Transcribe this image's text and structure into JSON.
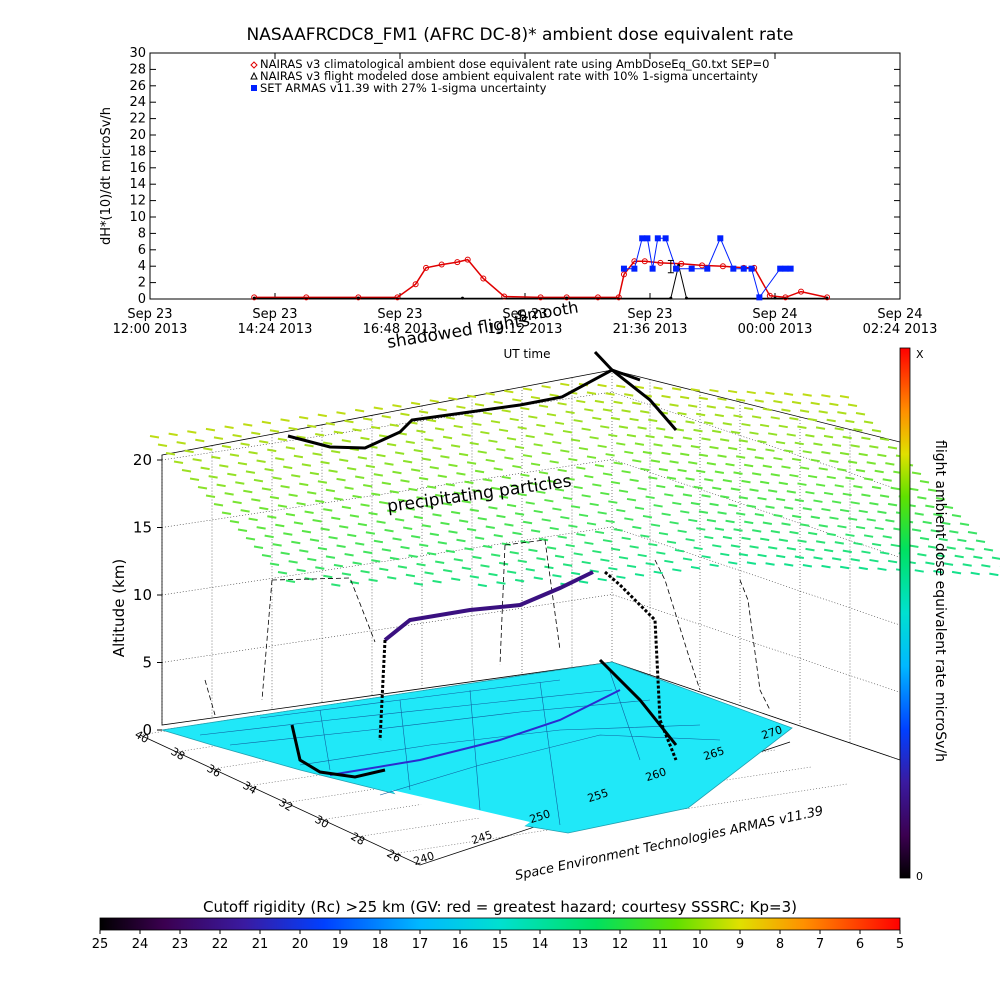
{
  "top_chart": {
    "title": "NASAAFRCDC8_FM1 (AFRC DC-8)* ambient dose equivalent rate",
    "ylabel": "dH*(10)/dt microSv/h",
    "xlabel": "UT time",
    "legend": [
      {
        "label": "NAIRAS v3 climatological ambient dose equivalent rate using AmbDoseEq_G0.txt SEP=0",
        "marker": "diamond",
        "color": "#e00000"
      },
      {
        "label": "NAIRAS v3 flight modeled dose ambient equivalent rate with 10% 1-sigma uncertainty",
        "marker": "triangle",
        "color": "#000000"
      },
      {
        "label": "SET ARMAS v11.39 with 27% 1-sigma uncertainty",
        "marker": "square",
        "color": "#0020ff"
      }
    ],
    "annotation_bottom": "shadowed  flights",
    "annotation_top": "Smooth"
  },
  "chart_data": [
    {
      "type": "line",
      "title": "NASAAFRCDC8_FM1 (AFRC DC-8)* ambient dose equivalent rate",
      "xlabel": "UT time",
      "ylabel": "dH*(10)/dt microSv/h",
      "ylim": [
        0,
        30
      ],
      "yticks": [
        0,
        2,
        4,
        6,
        8,
        10,
        12,
        14,
        16,
        18,
        20,
        22,
        24,
        26,
        28,
        30
      ],
      "xlim_hours": [
        0,
        14.4
      ],
      "xticks": [
        {
          "line1": "Sep 23",
          "line2": "12:00 2013"
        },
        {
          "line1": "Sep 23",
          "line2": "14:24 2013"
        },
        {
          "line1": "Sep 23",
          "line2": "16:48 2013"
        },
        {
          "line1": "Sep 23",
          "line2": "19:12 2013"
        },
        {
          "line1": "Sep 23",
          "line2": "21:36 2013"
        },
        {
          "line1": "Sep 24",
          "line2": "00:00 2013"
        },
        {
          "line1": "Sep 24",
          "line2": "02:24 2013"
        }
      ],
      "series": [
        {
          "name": "NAIRAS v3 climatological ambient dose equivalent rate using AmbDoseEq_G0.txt SEP=0",
          "color": "#e00000",
          "x_hours": [
            2.0,
            3.0,
            4.0,
            4.75,
            5.1,
            5.3,
            5.6,
            5.9,
            6.1,
            6.4,
            6.8,
            7.5,
            8.0,
            8.6,
            9.0,
            9.1,
            9.3,
            9.5,
            9.8,
            10.2,
            10.6,
            11.0,
            11.4,
            11.6,
            11.9,
            12.2,
            12.5,
            13.0
          ],
          "values": [
            0.2,
            0.2,
            0.2,
            0.2,
            1.8,
            3.8,
            4.2,
            4.5,
            4.8,
            2.5,
            0.3,
            0.2,
            0.2,
            0.2,
            0.2,
            3.0,
            4.6,
            4.6,
            4.4,
            4.3,
            4.1,
            4.0,
            3.8,
            3.8,
            0.4,
            0.2,
            0.9,
            0.2
          ]
        },
        {
          "name": "NAIRAS v3 flight modeled dose ambient equivalent rate with 10% 1-sigma uncertainty",
          "color": "#000000",
          "x_hours": [
            2.0,
            4.0,
            6.0,
            8.0,
            10.0,
            10.15,
            10.3,
            12.0,
            13.0
          ],
          "values": [
            0.1,
            0.1,
            0.1,
            0.1,
            0.1,
            4.1,
            0.1,
            0.1,
            0.1
          ]
        },
        {
          "name": "SET ARMAS v11.39 with 27% 1-sigma uncertainty",
          "color": "#0020ff",
          "x_hours": [
            9.1,
            9.3,
            9.45,
            9.55,
            9.65,
            9.75,
            9.9,
            10.1,
            10.4,
            10.7,
            10.95,
            11.2,
            11.4,
            11.55,
            11.7,
            12.1,
            12.2,
            12.3
          ],
          "values": [
            3.7,
            3.7,
            7.4,
            7.4,
            3.7,
            7.4,
            7.4,
            3.7,
            3.7,
            3.7,
            7.4,
            3.7,
            3.7,
            3.7,
            0.2,
            3.7,
            3.7,
            3.7
          ]
        }
      ]
    },
    {
      "type": "scatter",
      "title": "",
      "ylabel": "Altitude (km)",
      "zticks": [
        0,
        5,
        10,
        15,
        20
      ],
      "lat_ticks": [
        40,
        38,
        36,
        34,
        32,
        30,
        28,
        26
      ],
      "lon_ticks": [
        240,
        245,
        250,
        255,
        260,
        265,
        270
      ],
      "lon_axis_label": "Space Environment Technologies ARMAS v11.39",
      "annotation": "precipitating particles",
      "flight_track": {
        "lon": [
          240.0,
          242.0,
          244.0,
          245.0,
          246.0,
          250.0,
          255.0,
          258.0,
          260.5,
          262.0,
          263.0,
          265.0,
          267.5
        ],
        "lat": [
          34.0,
          33.0,
          32.5,
          33.0,
          37.0,
          38.5,
          39.5,
          40.5,
          41.0,
          40.0,
          37.5,
          35.0,
          32.0
        ],
        "alt_km": [
          0.0,
          0.0,
          4.0,
          7.0,
          10.5,
          11.5,
          12.0,
          12.5,
          12.8,
          10.0,
          4.0,
          0.5,
          0.0
        ]
      }
    }
  ],
  "colorbar_right": {
    "label": "flight ambient dose equivalent rate microSv/h",
    "top_label": "X",
    "bottom_label": "0"
  },
  "colorbar_bottom": {
    "title": "Cutoff rigidity (Rc) >25 km (GV: red = greatest hazard; courtesy SSSRC; Kp=3)",
    "ticks": [
      "25",
      "24",
      "23",
      "22",
      "21",
      "20",
      "19",
      "18",
      "17",
      "16",
      "15",
      "14",
      "13",
      "12",
      "11",
      "10",
      "9",
      "8",
      "7",
      "6",
      "5"
    ]
  }
}
